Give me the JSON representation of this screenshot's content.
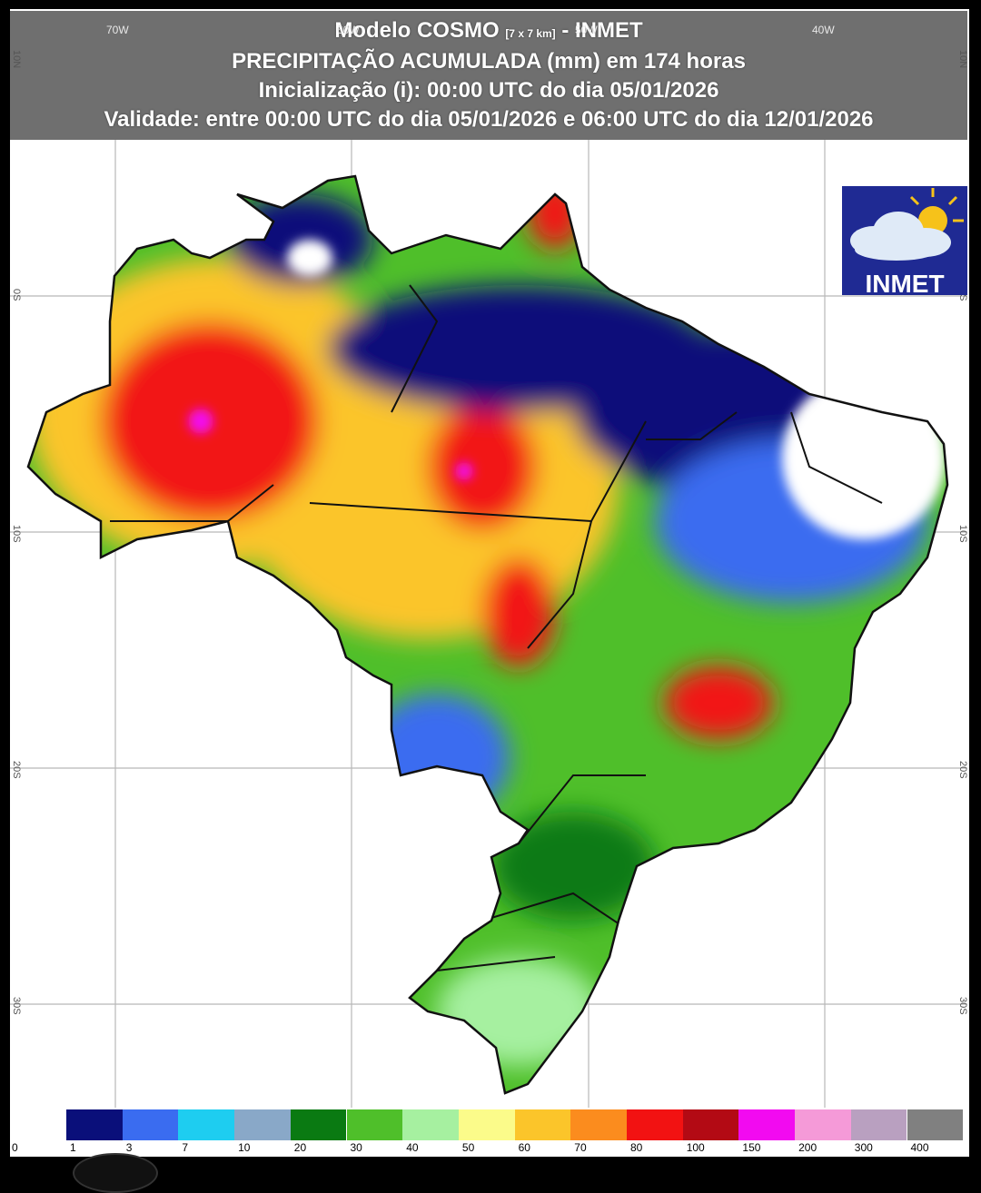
{
  "header": {
    "title_main": "Modelo COSMO",
    "title_res": "[7 x 7 km]",
    "title_suffix": "- INMET",
    "line2": "PRECIPITAÇÃO ACUMULADA (mm) em 174 horas",
    "line3": "Inicialização (i): 00:00 UTC do dia 05/01/2026",
    "line4": "Validade: entre 00:00 UTC do dia 05/01/2026 e 06:00 UTC do dia 12/01/2026"
  },
  "grid": {
    "lon_labels": [
      "70W",
      "60W",
      "50W",
      "40W"
    ],
    "lat_labels": [
      "10N",
      "0S",
      "10S",
      "20S",
      "30S"
    ]
  },
  "logo": {
    "text": "INMET"
  },
  "legend": {
    "colors": [
      "#ffffff",
      "#0a0f7a",
      "#3a6cf0",
      "#1ecdf0",
      "#89a8c8",
      "#0a7a12",
      "#4fbf2a",
      "#a6f0a0",
      "#fbfb8a",
      "#fbc52a",
      "#fb8c1e",
      "#f21212",
      "#b30a14",
      "#f20af0",
      "#f59ad8",
      "#b9a0c0",
      "#808080"
    ],
    "ticks": [
      "0",
      "1",
      "3",
      "7",
      "10",
      "20",
      "30",
      "40",
      "50",
      "60",
      "70",
      "80",
      "100",
      "150",
      "200",
      "300",
      "400"
    ]
  }
}
